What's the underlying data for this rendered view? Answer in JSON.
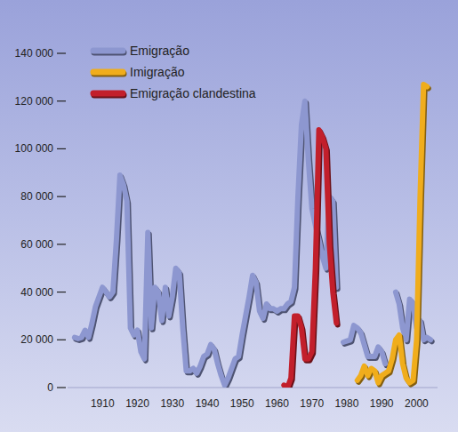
{
  "chart_data": {
    "type": "line",
    "xlim": [
      1900,
      2006
    ],
    "xticks": [
      1910,
      1920,
      1930,
      1940,
      1950,
      1960,
      1970,
      1980,
      1990,
      2000
    ],
    "ylim": [
      0,
      140000
    ],
    "yticks": [
      {
        "value": 0,
        "label": "0"
      },
      {
        "value": 20000,
        "label": "20 000"
      },
      {
        "value": 40000,
        "label": "40 000"
      },
      {
        "value": 60000,
        "label": "60 000"
      },
      {
        "value": 80000,
        "label": "80 000"
      },
      {
        "value": 100000,
        "label": "100 000"
      },
      {
        "value": 120000,
        "label": "120 000"
      },
      {
        "value": 140000,
        "label": "140 000"
      }
    ],
    "grid": false,
    "legend": "upper left",
    "series": [
      {
        "name": "Emigração",
        "color": "#8d97d0",
        "x": [
          1902,
          1903,
          1904,
          1905,
          1906,
          1907,
          1908,
          1909,
          1910,
          1911,
          1912,
          1913,
          1914,
          1915,
          1916,
          1917,
          1918,
          1919,
          1920,
          1921,
          1922,
          1923,
          1924,
          1925,
          1926,
          1927,
          1928,
          1929,
          1930,
          1931,
          1932,
          1933,
          1934,
          1935,
          1936,
          1937,
          1938,
          1939,
          1940,
          1941,
          1942,
          1943,
          1944,
          1945,
          1946,
          1947,
          1948,
          1949,
          1950,
          1951,
          1952,
          1953,
          1954,
          1955,
          1956,
          1957,
          1958,
          1959,
          1960,
          1961,
          1962,
          1963,
          1964,
          1965,
          1966,
          1967,
          1968,
          1969,
          1970,
          1971,
          1972,
          1973,
          1974,
          1975,
          1976,
          1977,
          1978,
          1979,
          1980,
          1981,
          1982,
          1983,
          1984,
          1985,
          1986,
          1987,
          1988,
          1989,
          1990,
          1991,
          1992,
          1993,
          1994,
          1995,
          1996,
          1997,
          1998,
          1999,
          2000,
          2001,
          2002,
          2003,
          2004
        ],
        "values": [
          21000,
          20500,
          21000,
          24000,
          21000,
          27000,
          34000,
          38000,
          42000,
          40000,
          38000,
          40000,
          62000,
          89000,
          85000,
          78000,
          25000,
          22000,
          24000,
          15000,
          12000,
          65000,
          25000,
          42000,
          40000,
          28000,
          42000,
          30000,
          38000,
          50000,
          48000,
          25000,
          7000,
          7000,
          8000,
          6000,
          9000,
          13000,
          14000,
          18000,
          16000,
          10000,
          5000,
          1000,
          4000,
          8000,
          12000,
          13000,
          22000,
          30000,
          38000,
          47000,
          44000,
          32000,
          29000,
          35000,
          33000,
          33000,
          32000,
          33000,
          33000,
          35000,
          36000,
          42000,
          80000,
          110000,
          120000,
          95000,
          75000,
          68000,
          62000,
          55000,
          50000,
          80000,
          78000,
          42000,
          null,
          19000,
          19500,
          20000,
          26000,
          25000,
          23000,
          18000,
          13000,
          13000,
          13000,
          17000,
          15000,
          10000,
          null,
          null,
          40000,
          35000,
          25000,
          20000,
          37000,
          35000,
          25000,
          28000,
          20000,
          21000,
          20000
        ]
      },
      {
        "name": "Imigração",
        "color": "#f0ad1c",
        "x": [
          1983,
          1984,
          1985,
          1986,
          1987,
          1988,
          1989,
          1990,
          1991,
          1992,
          1993,
          1994,
          1995,
          1996,
          1997,
          1998,
          1999,
          2000,
          2001,
          2002,
          2003
        ],
        "values": [
          3000,
          5000,
          9000,
          5000,
          8000,
          7000,
          2000,
          5000,
          6000,
          7000,
          12000,
          20000,
          22000,
          10000,
          4000,
          2000,
          3000,
          20000,
          80000,
          127000,
          126000
        ]
      },
      {
        "name": "Emigração clandestina",
        "color": "#c21f2b",
        "x": [
          1962,
          1963,
          1964,
          1965,
          1966,
          1967,
          1968,
          1969,
          1970,
          1971,
          1972,
          1973,
          1974,
          1975,
          1976,
          1977
        ],
        "values": [
          1000,
          0,
          4000,
          30000,
          30000,
          25000,
          12000,
          12000,
          15000,
          50000,
          108000,
          105000,
          100000,
          60000,
          40000,
          27000
        ]
      }
    ]
  }
}
